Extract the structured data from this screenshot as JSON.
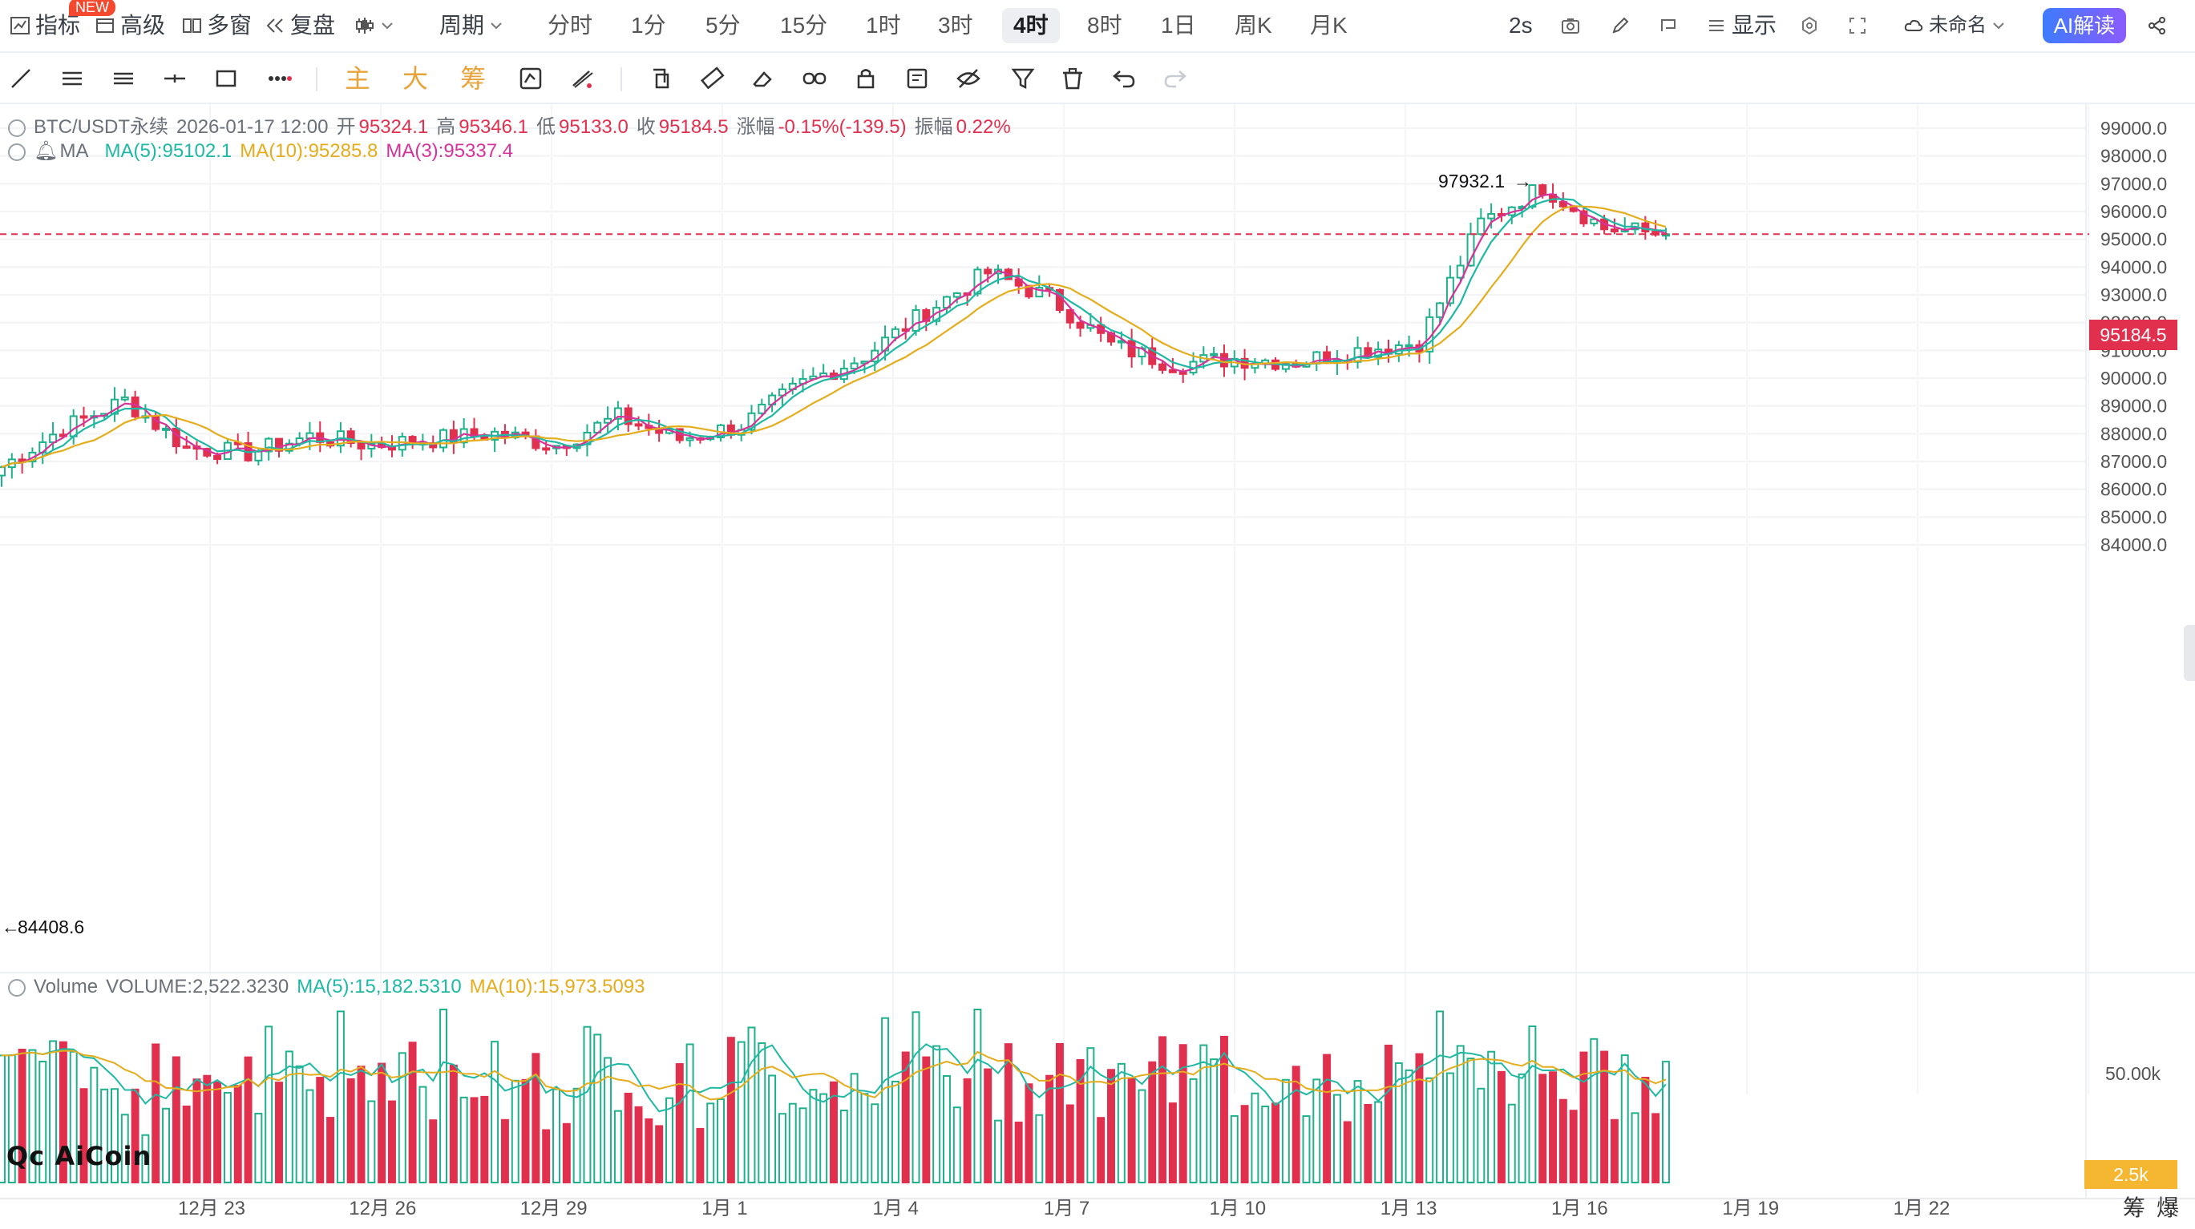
{
  "toolbar": {
    "indicators_label": "指标",
    "new_badge": "NEW",
    "advanced_label": "高级",
    "multi_window_label": "多窗",
    "replay_label": "复盘",
    "period_label": "周期",
    "periods": [
      "分时",
      "1分",
      "5分",
      "15分",
      "1时",
      "3时",
      "4时",
      "8时",
      "1日",
      "周K",
      "月K"
    ],
    "active_period": "4时",
    "refresh_label": "2s",
    "display_label": "显示",
    "layout_name": "未命名",
    "ai_label": "AI解读"
  },
  "tools": {
    "main_label": "主",
    "big_label": "大",
    "chips_label": "筹"
  },
  "info": {
    "symbol": "BTC/USDT永续",
    "datetime": "2026-01-17 12:00",
    "open_label": "开",
    "open": "95324.1",
    "high_label": "高",
    "high": "95346.1",
    "low_label": "低",
    "low": "95133.0",
    "close_label": "收",
    "close": "95184.5",
    "change_label": "涨幅",
    "change": "-0.15%(-139.5)",
    "amp_label": "振幅",
    "amp": "0.22%"
  },
  "ma_legend": {
    "name": "MA",
    "ma5": "MA(5):95102.1",
    "ma10": "MA(10):95285.8",
    "ma3": "MA(3):95337.4"
  },
  "volume_legend": {
    "name": "Volume",
    "volume": "VOLUME:2,522.3230",
    "ma5": "MA(5):15,182.5310",
    "ma10": "MA(10):15,973.5093"
  },
  "price_axis": [
    "99000.0",
    "98000.0",
    "97000.0",
    "96000.0",
    "95000.0",
    "94000.0",
    "93000.0",
    "92000.0",
    "91000.0",
    "90000.0",
    "89000.0",
    "88000.0",
    "87000.0",
    "86000.0",
    "85000.0",
    "84000.0"
  ],
  "volume_axis": [
    "50.00k",
    "2.5k"
  ],
  "current_price": "95184.5",
  "high_marker": "97932.1",
  "low_marker": "84408.6",
  "date_axis": [
    "12月 23",
    "12月 26",
    "12月 29",
    "1月 1",
    "1月 4",
    "1月 7",
    "1月 10",
    "1月 13",
    "1月 16",
    "1月 19",
    "1月 22"
  ],
  "watermark": "AiCoin",
  "corner_labels": [
    "筹",
    "爆"
  ],
  "colors": {
    "up": "#1fb08c",
    "down": "#e0304e",
    "ma5": "#1fb8a4",
    "ma10": "#e5ac1c",
    "ma3": "#d6339a"
  },
  "chart_data": {
    "type": "candlestick",
    "y_range": [
      84000,
      99000
    ],
    "anchors": [
      {
        "date": "12月 21",
        "close": 86800
      },
      {
        "date": "12月 22",
        "close": 88200
      },
      {
        "date": "12月 23",
        "close": 89200
      },
      {
        "date": "12月 24",
        "close": 87500
      },
      {
        "date": "12月 25",
        "close": 87300
      },
      {
        "date": "12月 26",
        "close": 87900
      },
      {
        "date": "12月 27",
        "close": 87600
      },
      {
        "date": "12月 28",
        "close": 87800
      },
      {
        "date": "12月 29",
        "close": 88000
      },
      {
        "date": "12月 30",
        "close": 87600
      },
      {
        "date": "12月 31",
        "close": 88600
      },
      {
        "date": "1月 1",
        "close": 87800
      },
      {
        "date": "1月 2",
        "close": 88300
      },
      {
        "date": "1月 3",
        "close": 89800
      },
      {
        "date": "1月 4",
        "close": 90800
      },
      {
        "date": "1月 5",
        "close": 92400
      },
      {
        "date": "1月 6",
        "close": 93800
      },
      {
        "date": "1月 7",
        "close": 92900
      },
      {
        "date": "1月 8",
        "close": 91200
      },
      {
        "date": "1月 9",
        "close": 90500
      },
      {
        "date": "1月 10",
        "close": 90700
      },
      {
        "date": "1月 11",
        "close": 90600
      },
      {
        "date": "1月 12",
        "close": 91000
      },
      {
        "date": "1月 13",
        "close": 91300
      },
      {
        "date": "1月 14",
        "close": 95600
      },
      {
        "date": "1月 15",
        "close": 96900
      },
      {
        "date": "1月 16",
        "close": 95400
      },
      {
        "date": "1月 17",
        "close": 95184.5
      }
    ]
  }
}
